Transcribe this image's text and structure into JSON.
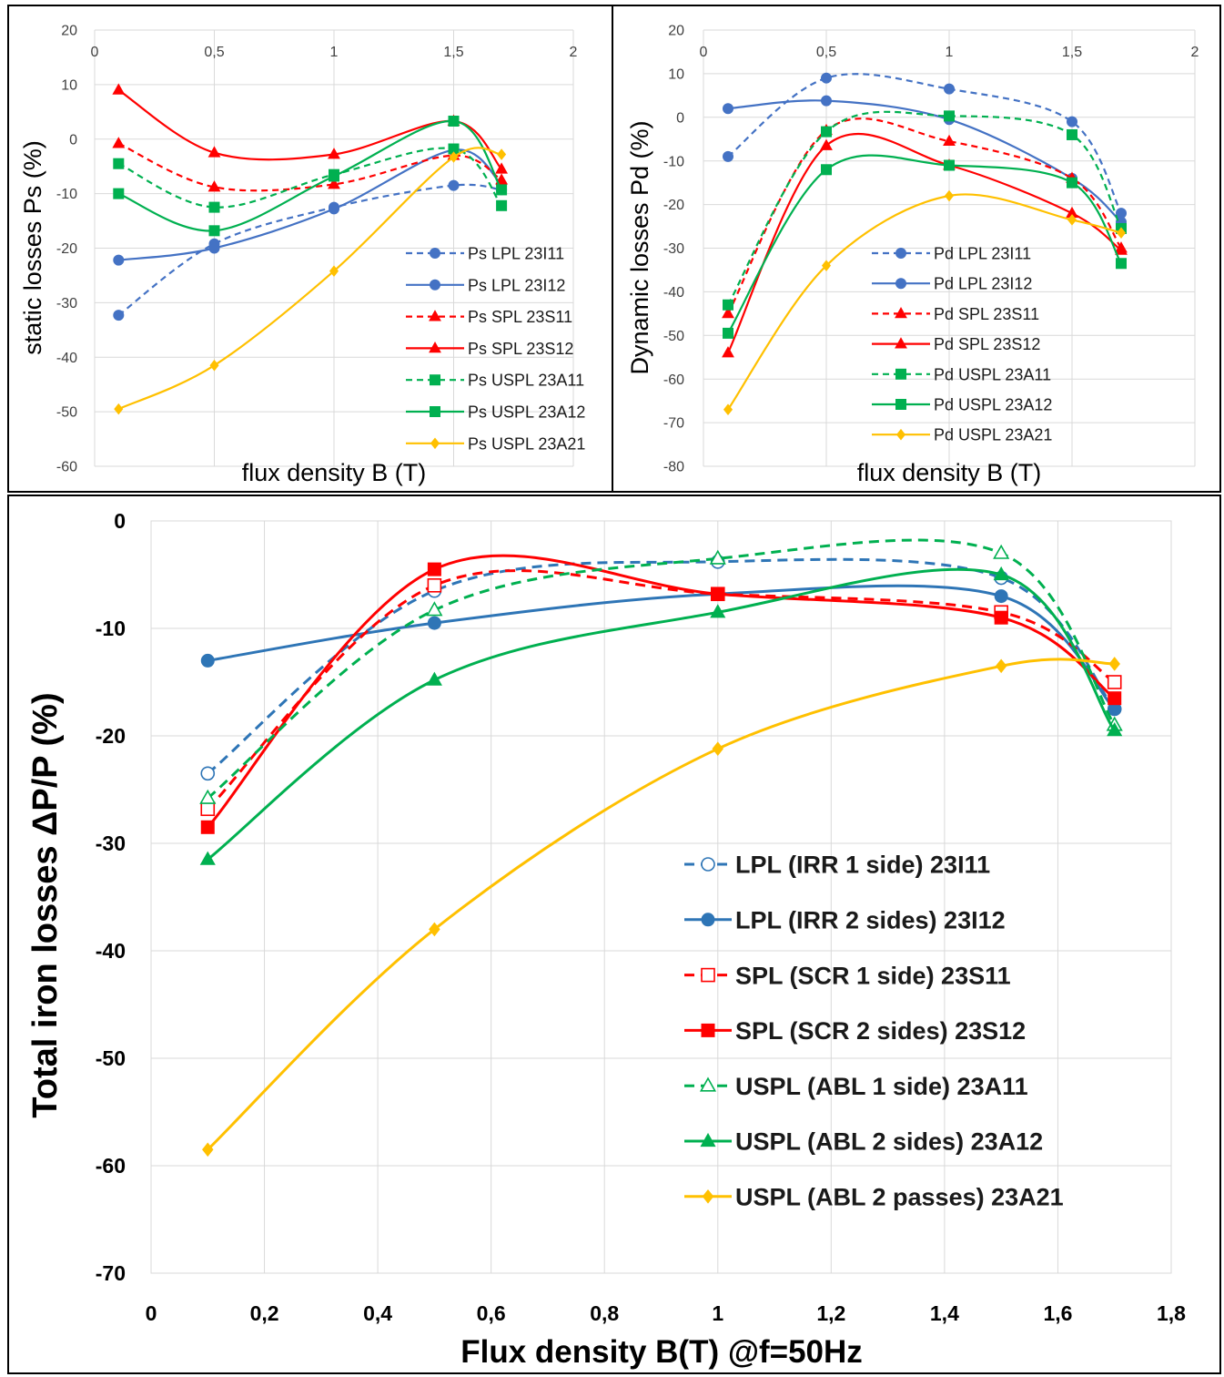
{
  "chart_data": [
    {
      "type": "line",
      "title": "",
      "xlabel": "flux density B (T)",
      "ylabel": "static losses Ps (%)",
      "xlim": [
        0,
        2
      ],
      "ylim": [
        -60,
        20
      ],
      "x_ticks": [
        "0",
        "0,5",
        "1",
        "1,5",
        "2"
      ],
      "y_ticks": [
        "20",
        "10",
        "0",
        "-10",
        "-20",
        "-30",
        "-40",
        "-50",
        "-60"
      ],
      "grid": true,
      "legend_position": "bottom-right",
      "x": [
        0.1,
        0.5,
        1.0,
        1.5,
        1.7
      ],
      "series": [
        {
          "name": "Ps LPL 23I11",
          "color": "#4472c4",
          "dash": true,
          "marker": "circle",
          "values": [
            -32.3,
            -19.2,
            -12.5,
            -8.5,
            -9.3
          ]
        },
        {
          "name": "Ps LPL 23I12",
          "color": "#4472c4",
          "dash": false,
          "marker": "circle",
          "values": [
            -22.2,
            -20.0,
            -12.8,
            -2.0,
            -8.3
          ]
        },
        {
          "name": "Ps SPL 23S11",
          "color": "#ff0000",
          "dash": true,
          "marker": "triangle",
          "values": [
            -0.8,
            -8.8,
            -8.3,
            -3.0,
            -7.5
          ]
        },
        {
          "name": "Ps SPL 23S12",
          "color": "#ff0000",
          "dash": false,
          "marker": "triangle",
          "values": [
            9.0,
            -2.5,
            -2.8,
            3.3,
            -5.5
          ]
        },
        {
          "name": "Ps USPL 23A11",
          "color": "#00b050",
          "dash": true,
          "marker": "square",
          "values": [
            -4.5,
            -12.5,
            -6.5,
            -1.8,
            -12.2
          ]
        },
        {
          "name": "Ps USPL 23A12",
          "color": "#00b050",
          "dash": false,
          "marker": "square",
          "values": [
            -10.0,
            -16.8,
            -6.8,
            3.3,
            -9.3
          ]
        },
        {
          "name": "Ps USPL 23A21",
          "color": "#ffc000",
          "dash": false,
          "marker": "diamond",
          "values": [
            -49.5,
            -41.5,
            -24.2,
            -3.3,
            -2.8
          ]
        }
      ]
    },
    {
      "type": "line",
      "title": "",
      "xlabel": "flux density B (T)",
      "ylabel": "Dynamic losses Pd (%)",
      "xlim": [
        0,
        2
      ],
      "ylim": [
        -80,
        20
      ],
      "x_ticks": [
        "0",
        "0,5",
        "1",
        "1,5",
        "2"
      ],
      "y_ticks": [
        "20",
        "10",
        "0",
        "-10",
        "-20",
        "-30",
        "-40",
        "-50",
        "-60",
        "-70",
        "-80"
      ],
      "grid": true,
      "legend_position": "bottom-right",
      "x": [
        0.1,
        0.5,
        1.0,
        1.5,
        1.7
      ],
      "series": [
        {
          "name": "Pd LPL 23I11",
          "color": "#4472c4",
          "dash": true,
          "marker": "circle",
          "values": [
            -9.0,
            9.0,
            6.5,
            -1.0,
            -22.0
          ]
        },
        {
          "name": "Pd LPL 23I12",
          "color": "#4472c4",
          "dash": false,
          "marker": "circle",
          "values": [
            2.0,
            3.8,
            -0.5,
            -14.0,
            -24.0
          ]
        },
        {
          "name": "Pd SPL 23S11",
          "color": "#ff0000",
          "dash": true,
          "marker": "triangle",
          "values": [
            -45.0,
            -3.0,
            -5.5,
            -14.0,
            -30.0
          ]
        },
        {
          "name": "Pd SPL 23S12",
          "color": "#ff0000",
          "dash": false,
          "marker": "triangle",
          "values": [
            -54.0,
            -6.5,
            -11.0,
            -22.0,
            -30.5
          ]
        },
        {
          "name": "Pd USPL 23A11",
          "color": "#00b050",
          "dash": true,
          "marker": "square",
          "values": [
            -43.0,
            -3.3,
            0.3,
            -4.0,
            -25.5
          ]
        },
        {
          "name": "Pd USPL 23A12",
          "color": "#00b050",
          "dash": false,
          "marker": "square",
          "values": [
            -49.5,
            -12.0,
            -11.0,
            -15.0,
            -33.5
          ]
        },
        {
          "name": "Pd USPL 23A21",
          "color": "#ffc000",
          "dash": false,
          "marker": "diamond",
          "values": [
            -67.0,
            -34.0,
            -18.0,
            -23.5,
            -26.5
          ]
        }
      ]
    },
    {
      "type": "line",
      "title": "",
      "xlabel": "Flux density B(T) @f=50Hz",
      "ylabel": "Total iron losses ΔP/P (%)",
      "xlim": [
        0,
        1.8
      ],
      "ylim": [
        -70,
        0
      ],
      "x_ticks": [
        "0",
        "0,2",
        "0,4",
        "0,6",
        "0,8",
        "1",
        "1,2",
        "1,4",
        "1,6",
        "1,8"
      ],
      "y_ticks": [
        "0",
        "-10",
        "-20",
        "-30",
        "-40",
        "-50",
        "-60",
        "-70"
      ],
      "grid": true,
      "legend_position": "bottom-right",
      "x": [
        0.1,
        0.5,
        1.0,
        1.5,
        1.7
      ],
      "series": [
        {
          "name": "LPL (IRR 1 side) 23I11",
          "color": "#2e75b6",
          "dash": true,
          "marker": "circle-open",
          "values": [
            -23.5,
            -6.5,
            -3.8,
            -5.3,
            -17.5
          ]
        },
        {
          "name": "LPL (IRR 2 sides) 23I12",
          "color": "#2e75b6",
          "dash": false,
          "marker": "circle",
          "values": [
            -13.0,
            -9.5,
            -6.8,
            -7.0,
            -17.5
          ]
        },
        {
          "name": "SPL (SCR 1 side) 23S11",
          "color": "#ff0000",
          "dash": true,
          "marker": "square-open",
          "values": [
            -26.8,
            -6.0,
            -6.8,
            -8.5,
            -15.0
          ]
        },
        {
          "name": "SPL (SCR 2 sides) 23S12",
          "color": "#ff0000",
          "dash": false,
          "marker": "square",
          "values": [
            -28.5,
            -4.5,
            -6.8,
            -9.0,
            -16.5
          ]
        },
        {
          "name": "USPL (ABL 1 side) 23A11",
          "color": "#00b050",
          "dash": true,
          "marker": "triangle-open",
          "values": [
            -25.8,
            -8.3,
            -3.5,
            -3.0,
            -19.0
          ]
        },
        {
          "name": "USPL (ABL 2 sides) 23A12",
          "color": "#00b050",
          "dash": false,
          "marker": "triangle",
          "values": [
            -31.5,
            -14.8,
            -8.5,
            -5.0,
            -19.5
          ]
        },
        {
          "name": "USPL (ABL 2 passes) 23A21",
          "color": "#ffc000",
          "dash": false,
          "marker": "diamond",
          "values": [
            -58.5,
            -38.0,
            -21.2,
            -13.5,
            -13.3
          ]
        }
      ]
    }
  ]
}
